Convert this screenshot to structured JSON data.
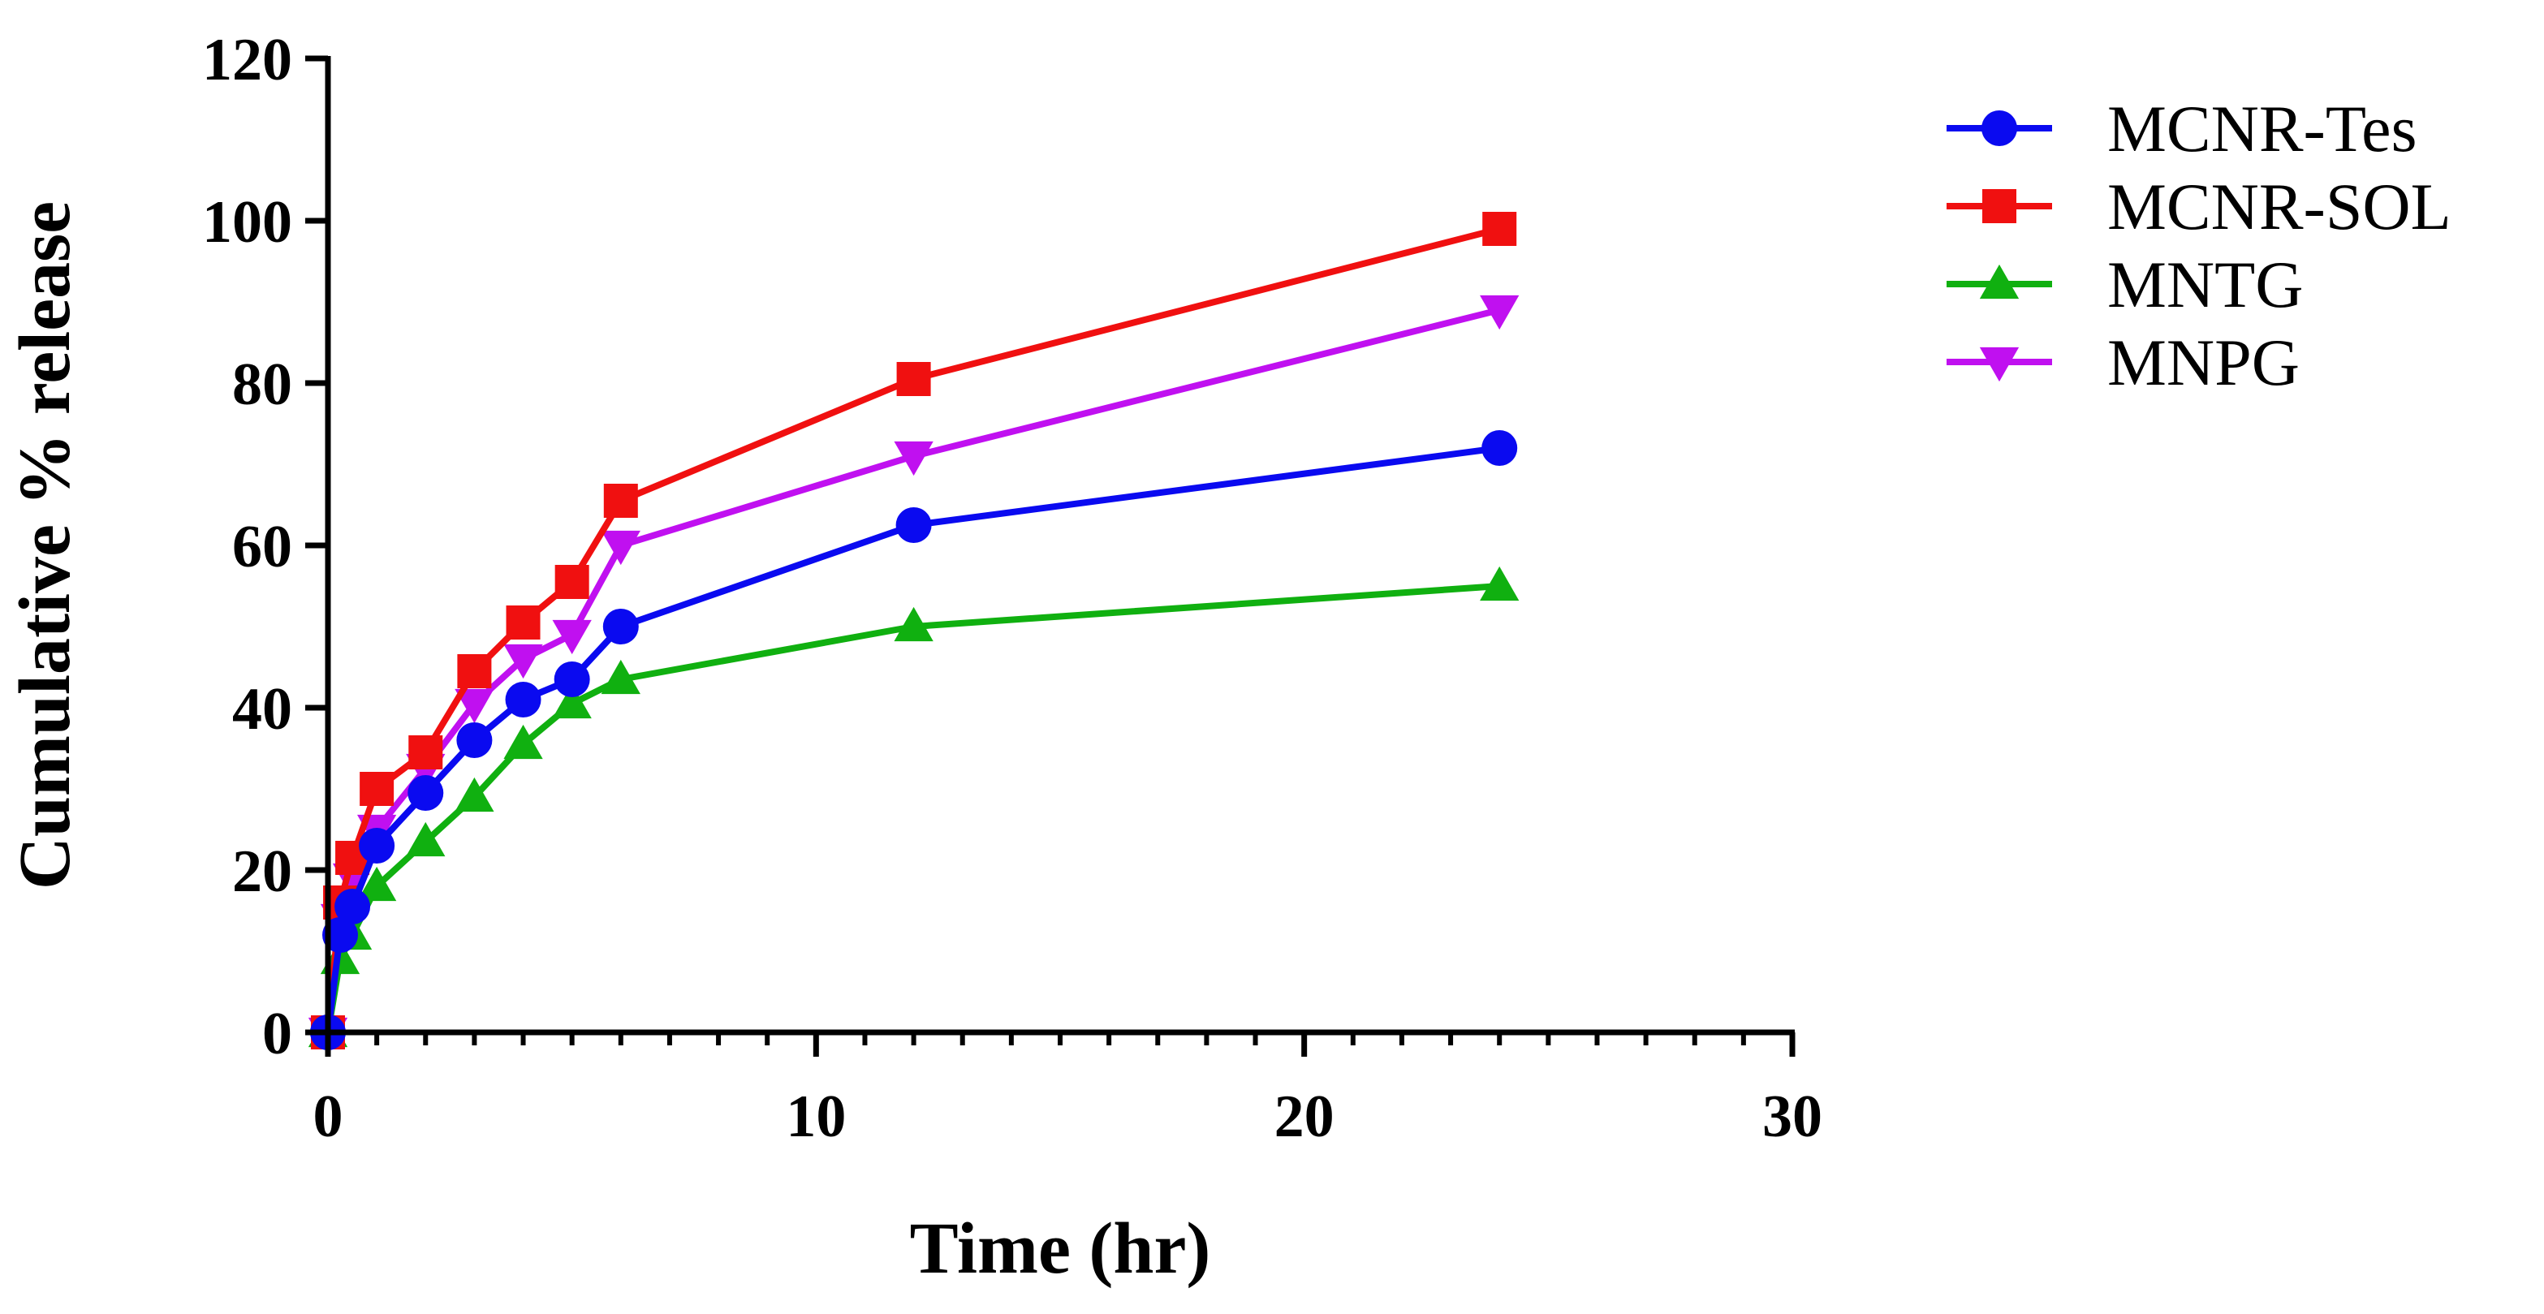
{
  "chart_data": {
    "type": "line",
    "title": "",
    "xlabel": "Time (hr)",
    "ylabel": "Cumulative % release",
    "xlim": [
      0,
      30
    ],
    "ylim": [
      0,
      120
    ],
    "xticks": [
      0,
      10,
      20,
      30
    ],
    "yticks": [
      0,
      20,
      40,
      60,
      80,
      100,
      120
    ],
    "x_minor_step": 1,
    "legend_position": "right",
    "grid": false,
    "series": [
      {
        "name": "MCNR-Tes",
        "color": "#0a0af0",
        "marker": "circle",
        "x": [
          0,
          0.25,
          0.5,
          1,
          2,
          3,
          4,
          5,
          6,
          12,
          24
        ],
        "y": [
          0,
          12,
          15.5,
          23,
          29.5,
          36,
          41,
          43.5,
          50,
          62.5,
          72
        ]
      },
      {
        "name": "MCNR-SOL",
        "color": "#f01010",
        "marker": "square",
        "x": [
          0,
          0.25,
          0.5,
          1,
          2,
          3,
          4,
          5,
          6,
          12,
          24
        ],
        "y": [
          0,
          16,
          21.5,
          30,
          34.5,
          44.5,
          50.5,
          55.5,
          65.5,
          80.5,
          99
        ]
      },
      {
        "name": "MNTG",
        "color": "#10b010",
        "marker": "triangle-up",
        "x": [
          0,
          0.25,
          0.5,
          1,
          2,
          3,
          4,
          5,
          6,
          12,
          24
        ],
        "y": [
          0,
          9,
          12,
          18,
          23.5,
          29,
          35.5,
          40.5,
          43.5,
          50,
          55
        ]
      },
      {
        "name": "MNPG",
        "color": "#c010f0",
        "marker": "triangle-down",
        "x": [
          0,
          0.25,
          0.5,
          1,
          2,
          3,
          4,
          5,
          6,
          12,
          24
        ],
        "y": [
          0,
          14,
          19,
          25,
          32.5,
          40.5,
          46,
          49,
          60,
          71,
          89
        ]
      }
    ]
  }
}
